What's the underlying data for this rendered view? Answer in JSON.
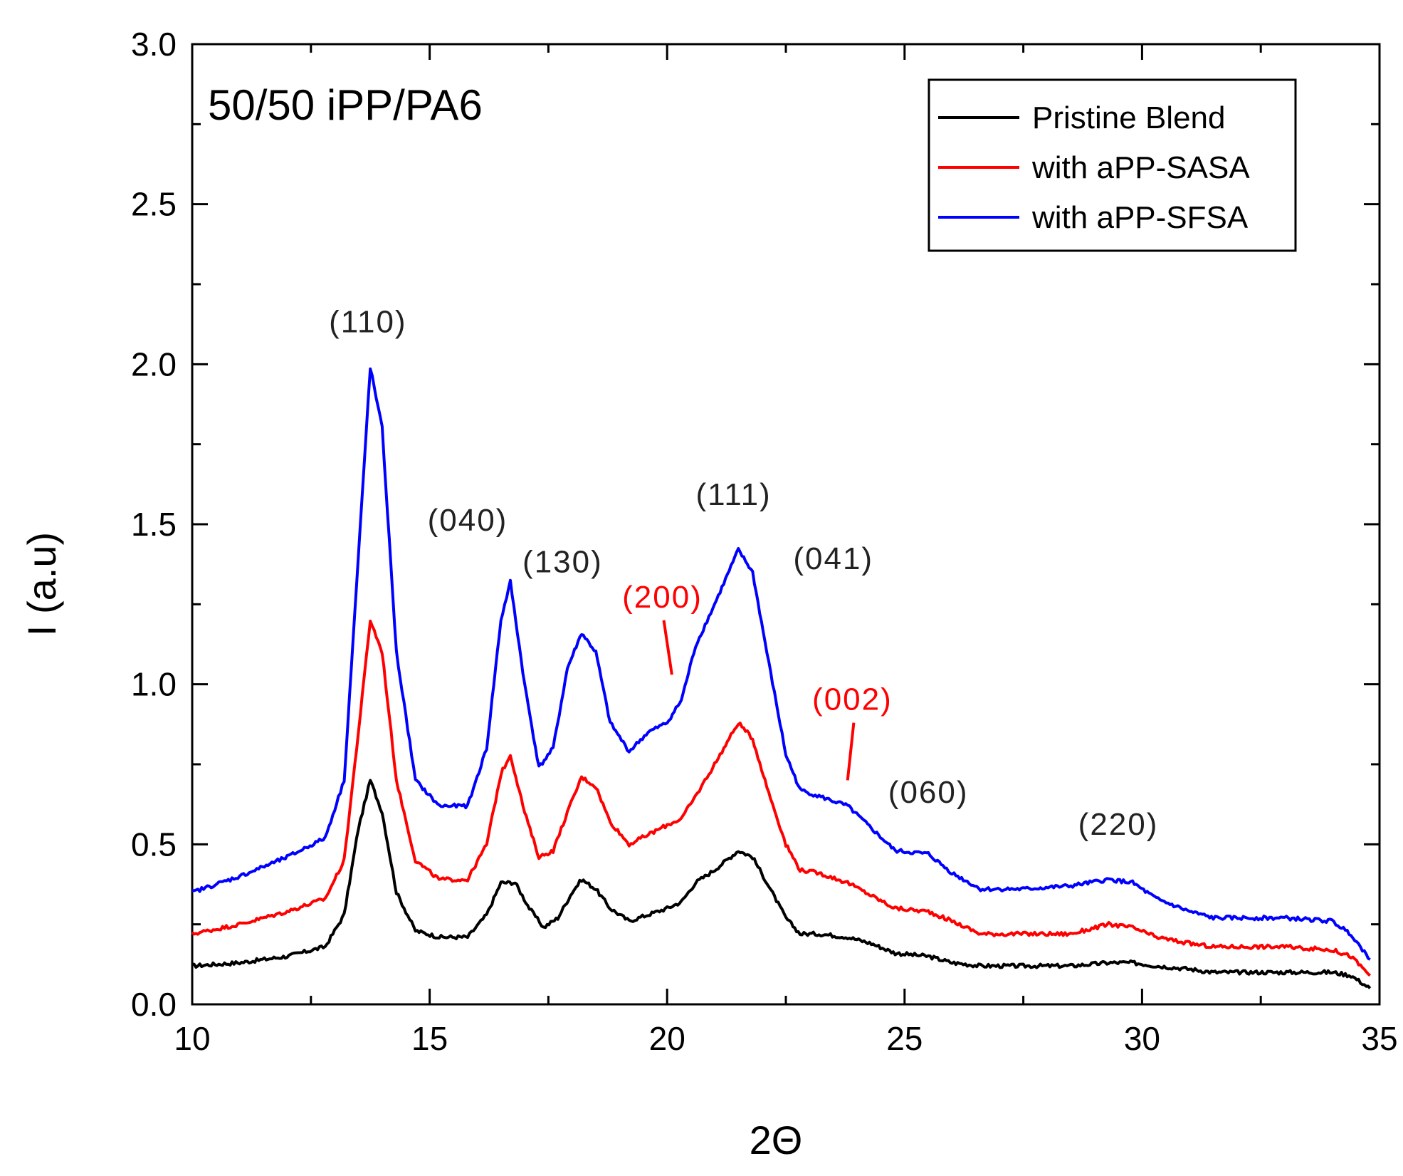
{
  "chart_data": {
    "type": "line",
    "title": "50/50 iPP/PA6",
    "xlabel": "2Θ",
    "ylabel": "I (a.u)",
    "xlim": [
      10,
      35
    ],
    "ylim": [
      0.0,
      3.0
    ],
    "x_ticks": [
      "10",
      "15",
      "20",
      "25",
      "30",
      "35"
    ],
    "y_ticks": [
      "0.0",
      "0.5",
      "1.0",
      "1.5",
      "2.0",
      "2.5",
      "3.0"
    ],
    "grid": false,
    "legend_position": "top-right",
    "series": [
      {
        "name": "Pristine Blend",
        "color": "#000000",
        "points": [
          [
            10.0,
            0.12
          ],
          [
            11.0,
            0.13
          ],
          [
            12.0,
            0.15
          ],
          [
            12.8,
            0.18
          ],
          [
            13.2,
            0.28
          ],
          [
            13.5,
            0.55
          ],
          [
            13.75,
            0.7
          ],
          [
            14.0,
            0.6
          ],
          [
            14.3,
            0.35
          ],
          [
            14.7,
            0.23
          ],
          [
            15.2,
            0.21
          ],
          [
            15.8,
            0.21
          ],
          [
            16.2,
            0.28
          ],
          [
            16.5,
            0.38
          ],
          [
            16.8,
            0.38
          ],
          [
            17.1,
            0.3
          ],
          [
            17.4,
            0.24
          ],
          [
            17.7,
            0.27
          ],
          [
            18.0,
            0.35
          ],
          [
            18.2,
            0.39
          ],
          [
            18.5,
            0.36
          ],
          [
            18.8,
            0.3
          ],
          [
            19.2,
            0.26
          ],
          [
            19.6,
            0.28
          ],
          [
            20.0,
            0.3
          ],
          [
            20.3,
            0.32
          ],
          [
            20.6,
            0.38
          ],
          [
            21.0,
            0.42
          ],
          [
            21.5,
            0.48
          ],
          [
            21.8,
            0.46
          ],
          [
            22.1,
            0.38
          ],
          [
            22.5,
            0.27
          ],
          [
            22.8,
            0.22
          ],
          [
            23.2,
            0.22
          ],
          [
            23.8,
            0.21
          ],
          [
            24.3,
            0.19
          ],
          [
            24.8,
            0.16
          ],
          [
            25.5,
            0.15
          ],
          [
            26.0,
            0.13
          ],
          [
            26.6,
            0.12
          ],
          [
            27.5,
            0.12
          ],
          [
            28.5,
            0.12
          ],
          [
            29.3,
            0.13
          ],
          [
            29.8,
            0.13
          ],
          [
            30.3,
            0.12
          ],
          [
            31.0,
            0.11
          ],
          [
            31.5,
            0.1
          ],
          [
            33.0,
            0.1
          ],
          [
            34.0,
            0.1
          ],
          [
            34.4,
            0.09
          ],
          [
            34.8,
            0.05
          ]
        ]
      },
      {
        "name": "with aPP-SASA",
        "color": "#ff0000",
        "points": [
          [
            10.0,
            0.22
          ],
          [
            11.0,
            0.25
          ],
          [
            12.0,
            0.29
          ],
          [
            12.8,
            0.33
          ],
          [
            13.2,
            0.45
          ],
          [
            13.5,
            0.85
          ],
          [
            13.75,
            1.2
          ],
          [
            14.0,
            1.1
          ],
          [
            14.3,
            0.7
          ],
          [
            14.7,
            0.45
          ],
          [
            15.2,
            0.39
          ],
          [
            15.8,
            0.39
          ],
          [
            16.2,
            0.5
          ],
          [
            16.5,
            0.72
          ],
          [
            16.7,
            0.78
          ],
          [
            17.0,
            0.6
          ],
          [
            17.3,
            0.46
          ],
          [
            17.6,
            0.48
          ],
          [
            17.9,
            0.6
          ],
          [
            18.2,
            0.71
          ],
          [
            18.5,
            0.68
          ],
          [
            18.8,
            0.57
          ],
          [
            19.2,
            0.5
          ],
          [
            19.6,
            0.53
          ],
          [
            20.0,
            0.56
          ],
          [
            20.3,
            0.58
          ],
          [
            20.6,
            0.65
          ],
          [
            21.0,
            0.75
          ],
          [
            21.5,
            0.88
          ],
          [
            21.8,
            0.83
          ],
          [
            22.1,
            0.68
          ],
          [
            22.5,
            0.5
          ],
          [
            22.8,
            0.42
          ],
          [
            23.2,
            0.41
          ],
          [
            23.8,
            0.38
          ],
          [
            24.3,
            0.34
          ],
          [
            24.8,
            0.3
          ],
          [
            25.5,
            0.29
          ],
          [
            26.0,
            0.26
          ],
          [
            26.6,
            0.22
          ],
          [
            27.5,
            0.22
          ],
          [
            28.5,
            0.22
          ],
          [
            29.3,
            0.25
          ],
          [
            29.8,
            0.24
          ],
          [
            30.3,
            0.21
          ],
          [
            31.0,
            0.19
          ],
          [
            31.5,
            0.18
          ],
          [
            33.0,
            0.18
          ],
          [
            34.0,
            0.17
          ],
          [
            34.4,
            0.15
          ],
          [
            34.8,
            0.09
          ]
        ]
      },
      {
        "name": "with aPP-SFSA",
        "color": "#0000ff",
        "points": [
          [
            10.0,
            0.35
          ],
          [
            11.0,
            0.4
          ],
          [
            12.0,
            0.46
          ],
          [
            12.8,
            0.52
          ],
          [
            13.2,
            0.7
          ],
          [
            13.5,
            1.4
          ],
          [
            13.75,
            1.99
          ],
          [
            14.0,
            1.8
          ],
          [
            14.3,
            1.1
          ],
          [
            14.7,
            0.7
          ],
          [
            15.2,
            0.62
          ],
          [
            15.8,
            0.62
          ],
          [
            16.2,
            0.8
          ],
          [
            16.5,
            1.2
          ],
          [
            16.7,
            1.32
          ],
          [
            17.0,
            1.0
          ],
          [
            17.3,
            0.74
          ],
          [
            17.6,
            0.8
          ],
          [
            17.9,
            1.05
          ],
          [
            18.2,
            1.16
          ],
          [
            18.5,
            1.1
          ],
          [
            18.8,
            0.88
          ],
          [
            19.2,
            0.79
          ],
          [
            19.6,
            0.85
          ],
          [
            20.0,
            0.88
          ],
          [
            20.3,
            0.95
          ],
          [
            20.6,
            1.12
          ],
          [
            21.0,
            1.25
          ],
          [
            21.5,
            1.42
          ],
          [
            21.8,
            1.35
          ],
          [
            22.1,
            1.1
          ],
          [
            22.5,
            0.78
          ],
          [
            22.8,
            0.67
          ],
          [
            23.2,
            0.65
          ],
          [
            23.8,
            0.62
          ],
          [
            24.3,
            0.55
          ],
          [
            24.8,
            0.48
          ],
          [
            25.5,
            0.47
          ],
          [
            26.0,
            0.41
          ],
          [
            26.6,
            0.36
          ],
          [
            27.5,
            0.36
          ],
          [
            28.5,
            0.37
          ],
          [
            29.3,
            0.39
          ],
          [
            29.8,
            0.38
          ],
          [
            30.3,
            0.33
          ],
          [
            31.0,
            0.29
          ],
          [
            31.5,
            0.27
          ],
          [
            33.0,
            0.27
          ],
          [
            34.0,
            0.26
          ],
          [
            34.4,
            0.22
          ],
          [
            34.8,
            0.14
          ]
        ]
      }
    ],
    "annotations": [
      {
        "text": "(110)",
        "x": 13.7,
        "y": 2.1,
        "color": "#222222"
      },
      {
        "text": "(040)",
        "x": 15.8,
        "y": 1.48,
        "color": "#222222"
      },
      {
        "text": "(130)",
        "x": 17.8,
        "y": 1.35,
        "color": "#222222"
      },
      {
        "text": "(200)",
        "x": 19.9,
        "y": 1.24,
        "color": "#ff0000",
        "line_to": [
          20.1,
          1.03
        ]
      },
      {
        "text": "(111)",
        "x": 21.4,
        "y": 1.56,
        "color": "#222222"
      },
      {
        "text": "(041)",
        "x": 23.5,
        "y": 1.36,
        "color": "#222222"
      },
      {
        "text": "(002)",
        "x": 23.9,
        "y": 0.92,
        "color": "#ff0000",
        "line_to": [
          23.8,
          0.7
        ]
      },
      {
        "text": "(060)",
        "x": 25.5,
        "y": 0.63,
        "color": "#222222"
      },
      {
        "text": "(220)",
        "x": 29.5,
        "y": 0.53,
        "color": "#222222"
      }
    ]
  }
}
